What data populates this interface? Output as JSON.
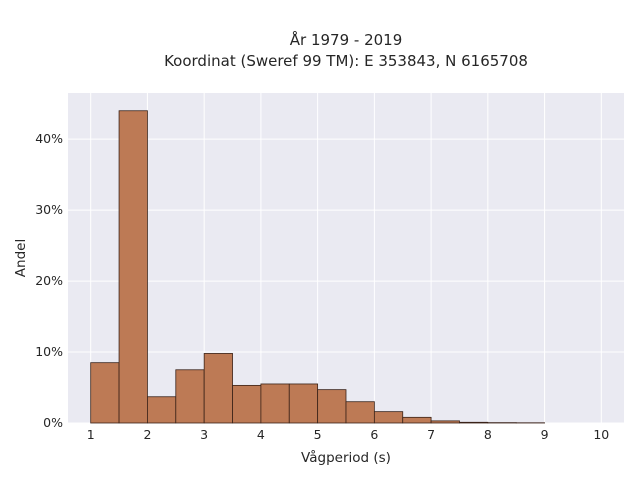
{
  "chart_data": {
    "type": "bar",
    "title": "År 1979 - 2019",
    "subtitle": "Koordinat (Sweref 99 TM): E 353843, N 6165708",
    "xlabel": "Vågperiod (s)",
    "ylabel": "Andel",
    "xlim": [
      0.6,
      10.4
    ],
    "ylim": [
      0,
      0.465
    ],
    "x_ticks": [
      1,
      2,
      3,
      4,
      5,
      6,
      7,
      8,
      9,
      10
    ],
    "x_tick_labels": [
      "1",
      "2",
      "3",
      "4",
      "5",
      "6",
      "7",
      "8",
      "9",
      "10"
    ],
    "y_ticks": [
      0,
      0.1,
      0.2,
      0.3,
      0.4
    ],
    "y_tick_labels": [
      "0%",
      "10%",
      "20%",
      "30%",
      "40%"
    ],
    "grid": true,
    "bin_width": 0.5,
    "bins": [
      {
        "start": 1.0,
        "value": 0.085
      },
      {
        "start": 1.5,
        "value": 0.44
      },
      {
        "start": 2.0,
        "value": 0.037
      },
      {
        "start": 2.5,
        "value": 0.075
      },
      {
        "start": 3.0,
        "value": 0.098
      },
      {
        "start": 3.5,
        "value": 0.053
      },
      {
        "start": 4.0,
        "value": 0.055
      },
      {
        "start": 4.5,
        "value": 0.055
      },
      {
        "start": 5.0,
        "value": 0.047
      },
      {
        "start": 5.5,
        "value": 0.03
      },
      {
        "start": 6.0,
        "value": 0.016
      },
      {
        "start": 6.5,
        "value": 0.008
      },
      {
        "start": 7.0,
        "value": 0.003
      },
      {
        "start": 7.5,
        "value": 0.001
      },
      {
        "start": 8.0,
        "value": 0.0005
      },
      {
        "start": 8.5,
        "value": 0.0003
      }
    ],
    "colors": {
      "bar_fill": "#bd7a55",
      "bar_edge": "#3a2218",
      "plot_background": "#eaeaf2",
      "grid": "#ffffff",
      "text": "#262626"
    }
  }
}
